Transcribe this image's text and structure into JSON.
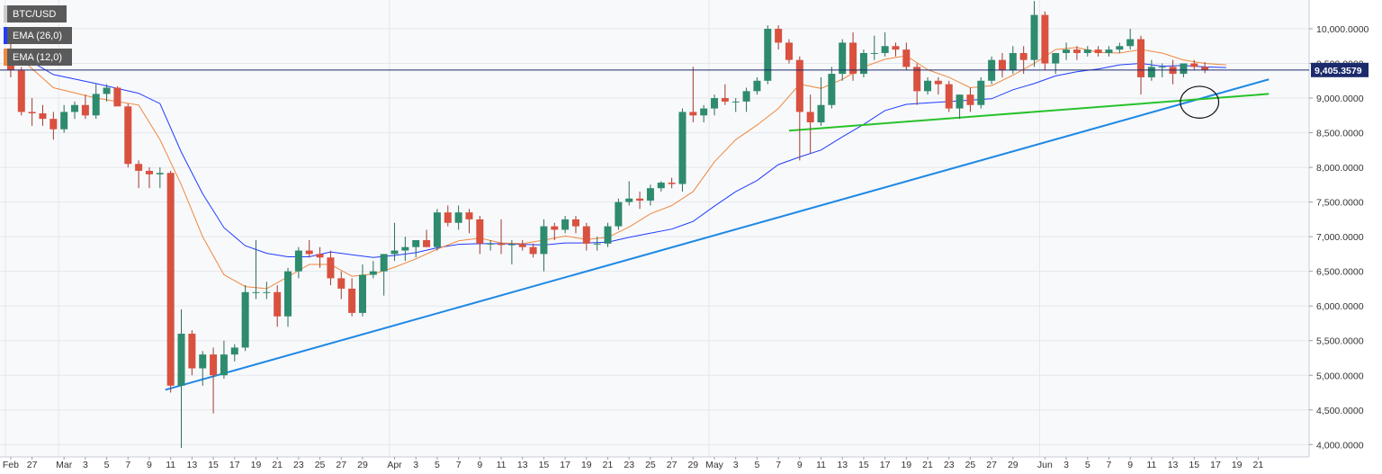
{
  "chart_data": {
    "type": "candlestick",
    "symbol": "BTC/USD",
    "indicators": [
      {
        "name": "EMA (26,0)",
        "color": "#1f3cff"
      },
      {
        "name": "EMA (12,0)",
        "color": "#f0883e"
      }
    ],
    "last_price_label": "9,405.3579",
    "last_price": 9405.3579,
    "y_ticks": [
      {
        "v": 10000,
        "label": "10,000.0000"
      },
      {
        "v": 9500,
        "label": "9,500.0000"
      },
      {
        "v": 9000,
        "label": "9,000.0000"
      },
      {
        "v": 8500,
        "label": "8,500.0000"
      },
      {
        "v": 8000,
        "label": "8,000.0000"
      },
      {
        "v": 7500,
        "label": "7,500.0000"
      },
      {
        "v": 7000,
        "label": "7,000.0000"
      },
      {
        "v": 6500,
        "label": "6,500.0000"
      },
      {
        "v": 6000,
        "label": "6,000.0000"
      },
      {
        "v": 5500,
        "label": "5,500.0000"
      },
      {
        "v": 5000,
        "label": "5,000.0000"
      },
      {
        "v": 4500,
        "label": "4,500.0000"
      },
      {
        "v": 4000,
        "label": "4,000.0000"
      }
    ],
    "x_ticks": [
      {
        "i": 0,
        "label": "Feb"
      },
      {
        "i": 2,
        "label": "27"
      },
      {
        "i": 5,
        "label": "Mar"
      },
      {
        "i": 7,
        "label": "3"
      },
      {
        "i": 9,
        "label": "5"
      },
      {
        "i": 11,
        "label": "7"
      },
      {
        "i": 13,
        "label": "9"
      },
      {
        "i": 15,
        "label": "11"
      },
      {
        "i": 17,
        "label": "13"
      },
      {
        "i": 19,
        "label": "15"
      },
      {
        "i": 21,
        "label": "17"
      },
      {
        "i": 23,
        "label": "19"
      },
      {
        "i": 25,
        "label": "21"
      },
      {
        "i": 27,
        "label": "23"
      },
      {
        "i": 29,
        "label": "25"
      },
      {
        "i": 31,
        "label": "27"
      },
      {
        "i": 33,
        "label": "29"
      },
      {
        "i": 36,
        "label": "Apr"
      },
      {
        "i": 38,
        "label": "3"
      },
      {
        "i": 40,
        "label": "5"
      },
      {
        "i": 42,
        "label": "7"
      },
      {
        "i": 44,
        "label": "9"
      },
      {
        "i": 46,
        "label": "11"
      },
      {
        "i": 48,
        "label": "13"
      },
      {
        "i": 50,
        "label": "15"
      },
      {
        "i": 52,
        "label": "17"
      },
      {
        "i": 54,
        "label": "19"
      },
      {
        "i": 56,
        "label": "21"
      },
      {
        "i": 58,
        "label": "23"
      },
      {
        "i": 60,
        "label": "25"
      },
      {
        "i": 62,
        "label": "27"
      },
      {
        "i": 64,
        "label": "29"
      },
      {
        "i": 66,
        "label": "May"
      },
      {
        "i": 68,
        "label": "3"
      },
      {
        "i": 70,
        "label": "5"
      },
      {
        "i": 72,
        "label": "7"
      },
      {
        "i": 74,
        "label": "9"
      },
      {
        "i": 76,
        "label": "11"
      },
      {
        "i": 78,
        "label": "13"
      },
      {
        "i": 80,
        "label": "15"
      },
      {
        "i": 82,
        "label": "17"
      },
      {
        "i": 84,
        "label": "19"
      },
      {
        "i": 86,
        "label": "21"
      },
      {
        "i": 88,
        "label": "23"
      },
      {
        "i": 90,
        "label": "25"
      },
      {
        "i": 92,
        "label": "27"
      },
      {
        "i": 94,
        "label": "29"
      },
      {
        "i": 97,
        "label": "Jun"
      },
      {
        "i": 99,
        "label": "3"
      },
      {
        "i": 101,
        "label": "5"
      },
      {
        "i": 103,
        "label": "7"
      },
      {
        "i": 105,
        "label": "9"
      },
      {
        "i": 107,
        "label": "11"
      },
      {
        "i": 109,
        "label": "13"
      },
      {
        "i": 111,
        "label": "15"
      },
      {
        "i": 113,
        "label": "17"
      },
      {
        "i": 115,
        "label": "19"
      },
      {
        "i": 117,
        "label": "21"
      }
    ],
    "vertical_gridlines_at": [
      0,
      5,
      36,
      66,
      97
    ],
    "y_range": [
      3940,
      10440
    ],
    "x_range": [
      0,
      118
    ],
    "candles": [
      [
        9700,
        9800,
        9300,
        9400
      ],
      [
        9400,
        9450,
        8750,
        8800
      ],
      [
        8800,
        9000,
        8600,
        8780
      ],
      [
        8780,
        8900,
        8600,
        8700
      ],
      [
        8700,
        8800,
        8400,
        8550
      ],
      [
        8550,
        8900,
        8500,
        8800
      ],
      [
        8800,
        8950,
        8700,
        8900
      ],
      [
        8900,
        9050,
        8700,
        8750
      ],
      [
        8750,
        9200,
        8700,
        9060
      ],
      [
        9060,
        9200,
        8950,
        9150
      ],
      [
        9150,
        9170,
        8900,
        8880
      ],
      [
        8880,
        8920,
        8000,
        8050
      ],
      [
        8050,
        8100,
        7700,
        7950
      ],
      [
        7950,
        8000,
        7700,
        7900
      ],
      [
        7900,
        8000,
        7700,
        7920
      ],
      [
        7920,
        7950,
        4750,
        4850
      ],
      [
        4850,
        5950,
        3950,
        5600
      ],
      [
        5600,
        5650,
        5000,
        5100
      ],
      [
        5100,
        5350,
        4850,
        5300
      ],
      [
        5300,
        5400,
        4450,
        5000
      ],
      [
        5000,
        5500,
        4950,
        5300
      ],
      [
        5300,
        5450,
        5200,
        5400
      ],
      [
        5400,
        6300,
        5350,
        6200
      ],
      [
        6200,
        6950,
        6100,
        6200
      ],
      [
        6200,
        6350,
        6100,
        6200
      ],
      [
        6200,
        6300,
        5700,
        5850
      ],
      [
        5850,
        6550,
        5700,
        6500
      ],
      [
        6500,
        6850,
        6400,
        6800
      ],
      [
        6800,
        6950,
        6700,
        6750
      ],
      [
        6750,
        6850,
        6550,
        6700
      ],
      [
        6700,
        6800,
        6300,
        6400
      ],
      [
        6400,
        6500,
        6100,
        6250
      ],
      [
        6250,
        6400,
        5850,
        5900
      ],
      [
        5900,
        6600,
        5850,
        6450
      ],
      [
        6450,
        6650,
        6400,
        6500
      ],
      [
        6500,
        6700,
        6150,
        6750
      ],
      [
        6750,
        7200,
        6650,
        6800
      ],
      [
        6800,
        7000,
        6650,
        6850
      ],
      [
        6850,
        6950,
        6700,
        6950
      ],
      [
        6950,
        7100,
        6850,
        6850
      ],
      [
        6850,
        7400,
        6800,
        7350
      ],
      [
        7350,
        7450,
        7150,
        7200
      ],
      [
        7200,
        7450,
        7100,
        7350
      ],
      [
        7350,
        7400,
        7050,
        7250
      ],
      [
        7250,
        7300,
        6750,
        6900
      ],
      [
        6900,
        6950,
        6800,
        6900
      ],
      [
        6900,
        7250,
        6750,
        6880
      ],
      [
        6880,
        6950,
        6600,
        6890
      ],
      [
        6890,
        6950,
        6800,
        6850
      ],
      [
        6850,
        6900,
        6700,
        6750
      ],
      [
        6750,
        7250,
        6500,
        7150
      ],
      [
        7150,
        7200,
        6950,
        7100
      ],
      [
        7100,
        7300,
        7050,
        7250
      ],
      [
        7250,
        7300,
        7050,
        7150
      ],
      [
        7150,
        7200,
        6800,
        6900
      ],
      [
        6900,
        7000,
        6800,
        6900
      ],
      [
        6900,
        7200,
        6850,
        7150
      ],
      [
        7150,
        7550,
        7100,
        7500
      ],
      [
        7500,
        7800,
        7450,
        7550
      ],
      [
        7550,
        7650,
        7400,
        7520
      ],
      [
        7520,
        7750,
        7450,
        7700
      ],
      [
        7700,
        7800,
        7650,
        7780
      ],
      [
        7780,
        7850,
        7700,
        7760
      ],
      [
        7760,
        8850,
        7650,
        8800
      ],
      [
        8800,
        9450,
        8650,
        8750
      ],
      [
        8750,
        8900,
        8650,
        8850
      ],
      [
        8850,
        9050,
        8750,
        9000
      ],
      [
        9000,
        9200,
        8900,
        8950
      ],
      [
        8950,
        9000,
        8800,
        8950
      ],
      [
        8950,
        9150,
        8800,
        9100
      ],
      [
        9100,
        9300,
        9050,
        9250
      ],
      [
        9250,
        10050,
        9200,
        10000
      ],
      [
        10000,
        10050,
        9700,
        9800
      ],
      [
        9800,
        9850,
        9500,
        9550
      ],
      [
        9550,
        9600,
        8100,
        8800
      ],
      [
        8800,
        9050,
        8200,
        8650
      ],
      [
        8650,
        9300,
        8600,
        8900
      ],
      [
        8900,
        9450,
        8850,
        9350
      ],
      [
        9350,
        9850,
        9250,
        9800
      ],
      [
        9800,
        9950,
        9250,
        9350
      ],
      [
        9350,
        9700,
        9300,
        9650
      ],
      [
        9650,
        9900,
        9550,
        9650
      ],
      [
        9650,
        9950,
        9600,
        9750
      ],
      [
        9750,
        9800,
        9600,
        9700
      ],
      [
        9700,
        9800,
        9400,
        9450
      ],
      [
        9450,
        9500,
        8900,
        9100
      ],
      [
        9100,
        9300,
        9050,
        9250
      ],
      [
        9250,
        9300,
        9050,
        9200
      ],
      [
        9200,
        9250,
        8800,
        8850
      ],
      [
        8850,
        9050,
        8700,
        9050
      ],
      [
        9050,
        9150,
        8800,
        8900
      ],
      [
        8900,
        9300,
        8850,
        9250
      ],
      [
        9250,
        9600,
        9200,
        9550
      ],
      [
        9550,
        9650,
        9300,
        9400
      ],
      [
        9400,
        9750,
        9350,
        9650
      ],
      [
        9650,
        9750,
        9350,
        9550
      ],
      [
        9550,
        10400,
        9450,
        10200
      ],
      [
        10200,
        10250,
        9400,
        9500
      ],
      [
        9500,
        9650,
        9350,
        9650
      ],
      [
        9650,
        9800,
        9550,
        9700
      ],
      [
        9700,
        9750,
        9550,
        9650
      ],
      [
        9650,
        9750,
        9600,
        9700
      ],
      [
        9700,
        9750,
        9600,
        9650
      ],
      [
        9650,
        9750,
        9600,
        9700
      ],
      [
        9700,
        9800,
        9650,
        9750
      ],
      [
        9750,
        10000,
        9700,
        9850
      ],
      [
        9850,
        9900,
        9050,
        9300
      ],
      [
        9300,
        9550,
        9250,
        9450
      ],
      [
        9450,
        9500,
        9300,
        9450
      ],
      [
        9450,
        9550,
        9200,
        9350
      ],
      [
        9350,
        9500,
        9300,
        9500
      ],
      [
        9500,
        9550,
        9400,
        9450
      ],
      [
        9450,
        9520,
        9360,
        9405.3579
      ]
    ],
    "ema26": [
      [
        0,
        9700
      ],
      [
        4,
        9340
      ],
      [
        8,
        9210
      ],
      [
        12,
        9070
      ],
      [
        14,
        8920
      ],
      [
        16,
        8220
      ],
      [
        18,
        7620
      ],
      [
        20,
        7130
      ],
      [
        22,
        6870
      ],
      [
        24,
        6760
      ],
      [
        26,
        6710
      ],
      [
        28,
        6710
      ],
      [
        30,
        6780
      ],
      [
        32,
        6740
      ],
      [
        34,
        6700
      ],
      [
        36,
        6730
      ],
      [
        38,
        6770
      ],
      [
        40,
        6840
      ],
      [
        42,
        6890
      ],
      [
        44,
        6900
      ],
      [
        46,
        6900
      ],
      [
        48,
        6890
      ],
      [
        50,
        6880
      ],
      [
        52,
        6910
      ],
      [
        54,
        6910
      ],
      [
        56,
        6920
      ],
      [
        58,
        6990
      ],
      [
        60,
        7050
      ],
      [
        62,
        7110
      ],
      [
        64,
        7220
      ],
      [
        66,
        7440
      ],
      [
        68,
        7650
      ],
      [
        70,
        7810
      ],
      [
        72,
        8040
      ],
      [
        74,
        8150
      ],
      [
        76,
        8250
      ],
      [
        78,
        8440
      ],
      [
        80,
        8620
      ],
      [
        82,
        8820
      ],
      [
        84,
        8910
      ],
      [
        86,
        8930
      ],
      [
        88,
        8950
      ],
      [
        90,
        8970
      ],
      [
        92,
        8990
      ],
      [
        94,
        9120
      ],
      [
        96,
        9210
      ],
      [
        98,
        9320
      ],
      [
        100,
        9380
      ],
      [
        102,
        9420
      ],
      [
        104,
        9480
      ],
      [
        106,
        9500
      ],
      [
        108,
        9460
      ],
      [
        110,
        9470
      ],
      [
        112,
        9450
      ],
      [
        114,
        9440
      ]
    ],
    "ema12": [
      [
        0,
        9700
      ],
      [
        4,
        9150
      ],
      [
        8,
        9000
      ],
      [
        12,
        8900
      ],
      [
        14,
        8400
      ],
      [
        16,
        7750
      ],
      [
        18,
        7000
      ],
      [
        20,
        6450
      ],
      [
        22,
        6280
      ],
      [
        24,
        6250
      ],
      [
        26,
        6420
      ],
      [
        28,
        6600
      ],
      [
        30,
        6600
      ],
      [
        32,
        6430
      ],
      [
        34,
        6460
      ],
      [
        36,
        6560
      ],
      [
        38,
        6680
      ],
      [
        40,
        6820
      ],
      [
        42,
        6940
      ],
      [
        44,
        6980
      ],
      [
        46,
        6910
      ],
      [
        48,
        6900
      ],
      [
        50,
        6950
      ],
      [
        52,
        7010
      ],
      [
        54,
        6960
      ],
      [
        56,
        6990
      ],
      [
        58,
        7140
      ],
      [
        60,
        7330
      ],
      [
        62,
        7450
      ],
      [
        64,
        7650
      ],
      [
        66,
        8080
      ],
      [
        68,
        8400
      ],
      [
        70,
        8610
      ],
      [
        72,
        8850
      ],
      [
        74,
        9200
      ],
      [
        76,
        9140
      ],
      [
        78,
        9270
      ],
      [
        80,
        9450
      ],
      [
        82,
        9560
      ],
      [
        84,
        9610
      ],
      [
        86,
        9410
      ],
      [
        88,
        9300
      ],
      [
        90,
        9150
      ],
      [
        92,
        9180
      ],
      [
        94,
        9330
      ],
      [
        96,
        9500
      ],
      [
        98,
        9700
      ],
      [
        100,
        9730
      ],
      [
        102,
        9660
      ],
      [
        104,
        9650
      ],
      [
        106,
        9700
      ],
      [
        108,
        9650
      ],
      [
        110,
        9550
      ],
      [
        112,
        9500
      ],
      [
        114,
        9480
      ]
    ],
    "trendlines": [
      {
        "name": "blue-support",
        "color": "#1e88e5",
        "from": [
          14.5,
          4790
        ],
        "to": [
          118,
          9270
        ]
      },
      {
        "name": "green-support",
        "color": "#27c22a",
        "from": [
          73,
          8530
        ],
        "to": [
          118,
          9060
        ]
      }
    ],
    "highlight_circle": {
      "center": [
        111.5,
        8940
      ],
      "rx_bars": 1.8,
      "ry_value": 230
    }
  }
}
